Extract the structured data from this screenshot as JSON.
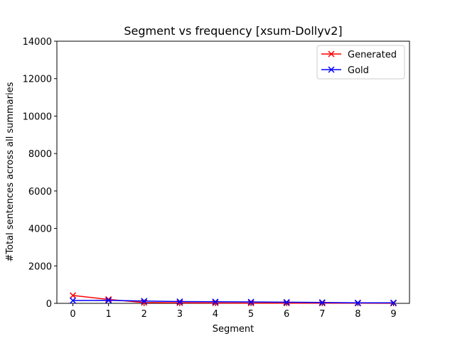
{
  "chart_data": {
    "type": "line",
    "title": "Segment vs frequency [xsum-Dollyv2]",
    "xlabel": "Segment",
    "ylabel": "#Total sentences across all summaries",
    "x": [
      0,
      1,
      2,
      3,
      4,
      5,
      6,
      7,
      8,
      9
    ],
    "xlim": [
      -0.45,
      9.45
    ],
    "ylim": [
      0,
      14000
    ],
    "xticks": [
      "0",
      "1",
      "2",
      "3",
      "4",
      "5",
      "6",
      "7",
      "8",
      "9"
    ],
    "yticks": [
      "0",
      "2000",
      "4000",
      "6000",
      "8000",
      "10000",
      "12000",
      "14000"
    ],
    "ytick_values": [
      0,
      2000,
      4000,
      6000,
      8000,
      10000,
      12000,
      14000
    ],
    "grid": false,
    "legend_position": "top-right",
    "series": [
      {
        "name": "Generated",
        "color": "#ff0000",
        "marker": "x",
        "values": [
          420,
          210,
          40,
          25,
          20,
          15,
          12,
          10,
          8,
          5
        ]
      },
      {
        "name": "Gold",
        "color": "#0000ff",
        "marker": "x",
        "values": [
          150,
          160,
          120,
          95,
          85,
          75,
          60,
          50,
          25,
          30
        ]
      }
    ]
  }
}
